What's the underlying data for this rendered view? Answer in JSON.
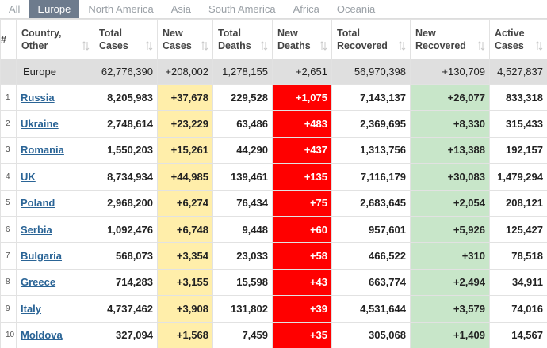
{
  "tabs": [
    "All",
    "Europe",
    "North America",
    "Asia",
    "South America",
    "Africa",
    "Oceania"
  ],
  "table": {
    "columns": [
      "#",
      "Country, Other",
      "Total Cases",
      "New Cases",
      "Total Deaths",
      "New Deaths",
      "Total Recovered",
      "New Recovered",
      "Active Cases"
    ],
    "summary": [
      "Europe",
      "62,776,390",
      "+208,002",
      "1,278,155",
      "+2,651",
      "56,970,398",
      "+130,709",
      "4,527,837"
    ],
    "rows": [
      [
        "1",
        "Russia",
        "8,205,983",
        "+37,678",
        "229,528",
        "+1,075",
        "7,143,137",
        "+26,077",
        "833,318"
      ],
      [
        "2",
        "Ukraine",
        "2,748,614",
        "+23,229",
        "63,486",
        "+483",
        "2,369,695",
        "+8,330",
        "315,433"
      ],
      [
        "3",
        "Romania",
        "1,550,203",
        "+15,261",
        "44,290",
        "+437",
        "1,313,756",
        "+13,388",
        "192,157"
      ],
      [
        "4",
        "UK",
        "8,734,934",
        "+44,985",
        "139,461",
        "+135",
        "7,116,179",
        "+30,083",
        "1,479,294"
      ],
      [
        "5",
        "Poland",
        "2,968,200",
        "+6,274",
        "76,434",
        "+75",
        "2,683,645",
        "+2,054",
        "208,121"
      ],
      [
        "6",
        "Serbia",
        "1,092,476",
        "+6,748",
        "9,448",
        "+60",
        "957,601",
        "+5,926",
        "125,427"
      ],
      [
        "7",
        "Bulgaria",
        "568,073",
        "+3,354",
        "23,033",
        "+58",
        "466,522",
        "+310",
        "78,518"
      ],
      [
        "8",
        "Greece",
        "714,283",
        "+3,155",
        "15,598",
        "+43",
        "663,774",
        "+2,494",
        "34,911"
      ],
      [
        "9",
        "Italy",
        "4,737,462",
        "+3,908",
        "131,802",
        "+39",
        "4,531,644",
        "+3,579",
        "74,016"
      ],
      [
        "10",
        "Moldova",
        "327,094",
        "+1,568",
        "7,459",
        "+35",
        "305,068",
        "+1,409",
        "14,567"
      ]
    ]
  }
}
